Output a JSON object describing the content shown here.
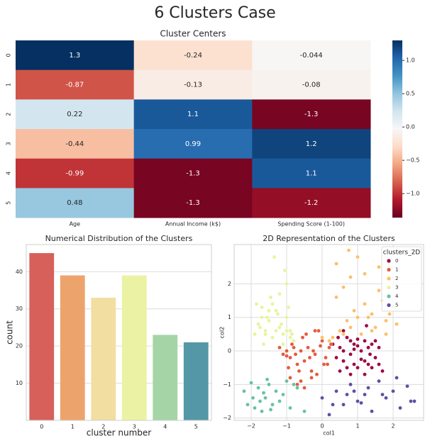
{
  "title": "6 Clusters Case",
  "chart_data": [
    {
      "type": "heatmap",
      "title": "Cluster Centers",
      "rows": [
        "0",
        "1",
        "2",
        "3",
        "4",
        "5"
      ],
      "columns": [
        "Age",
        "Annual Income (k$)",
        "Spending Score (1-100)"
      ],
      "values": [
        [
          1.3,
          -0.24,
          -0.044
        ],
        [
          -0.87,
          -0.13,
          -0.08
        ],
        [
          0.22,
          1.1,
          -1.3
        ],
        [
          -0.44,
          0.99,
          1.2
        ],
        [
          -0.99,
          -1.3,
          1.1
        ],
        [
          0.48,
          -1.3,
          -1.2
        ]
      ],
      "colormap": "RdBu",
      "zlim": [
        -1.36,
        1.3
      ],
      "zticks": [
        {
          "value": 1,
          "label": "1.0"
        },
        0.5,
        {
          "value": 0,
          "label": "0.0"
        },
        {
          "value": -0.5,
          "label": "−0.5"
        },
        {
          "value": -1,
          "label": "−1.0"
        }
      ]
    },
    {
      "type": "bar",
      "title": "Numerical Distribution of the Clusters",
      "x_label": "cluster number",
      "y_label": "count",
      "categories": [
        "0",
        "1",
        "2",
        "3",
        "4",
        "5"
      ],
      "values": [
        45,
        39,
        33,
        39,
        23,
        21
      ],
      "colors": [
        "#d7605b",
        "#eca46c",
        "#f2dea1",
        "#ebf2a3",
        "#a5d5a6",
        "#5497a6"
      ],
      "ylim": [
        0,
        47.3
      ],
      "yticks": [
        10,
        20,
        30,
        40
      ],
      "grid": true
    },
    {
      "type": "scatter",
      "title": "2D Representation of the Clusters",
      "x_label": "col1",
      "y_label": "col2",
      "legend_title": "clusters_2D",
      "legend": "upper right",
      "grid": true,
      "xlim": [
        -2.48,
        2.86
      ],
      "ylim": [
        -2.07,
        3.17
      ],
      "xticks": [
        {
          "value": -2,
          "label": "−2"
        },
        {
          "value": -1,
          "label": "−1"
        },
        0,
        1,
        2
      ],
      "yticks": [
        {
          "value": -2,
          "label": "−2"
        },
        {
          "value": -1,
          "label": "−1"
        },
        0,
        1,
        2
      ],
      "series": [
        {
          "name": "0",
          "color": "#9e0142",
          "x": [
            0.5,
            0.6,
            0.7,
            0.8,
            0.9,
            1.0,
            1.1,
            1.2,
            1.3,
            1.4,
            1.5,
            1.6,
            1.7,
            0.4,
            0.6,
            0.8,
            1.0,
            1.2,
            1.4,
            0.3,
            0.7,
            0.9,
            1.1,
            1.3,
            1.5,
            0.5,
            0.8,
            1.0,
            1.25,
            0.6,
            1.6,
            1.2,
            0.9,
            0.45,
            1.35
          ],
          "y": [
            0.1,
            -0.3,
            0.4,
            -0.1,
            0.2,
            -0.5,
            0.0,
            0.3,
            -0.4,
            0.2,
            -0.2,
            0.1,
            -0.6,
            -0.2,
            0.6,
            -0.7,
            0.35,
            -0.3,
            -0.5,
            0.2,
            -0.5,
            0.05,
            -0.25,
            0.1,
            0.3,
            -0.6,
            0.3,
            0.15,
            0.75,
            0.0,
            -0.4,
            -0.7,
            -0.4,
            0.4,
            -0.1
          ]
        },
        {
          "name": "1",
          "color": "#e55a3c",
          "x": [
            -1.0,
            -0.9,
            -0.8,
            -0.7,
            -0.6,
            -0.5,
            -0.4,
            -0.3,
            -0.2,
            -0.1,
            0.0,
            0.1,
            0.2,
            -1.1,
            -0.95,
            -0.75,
            -0.55,
            -0.35,
            -0.15,
            0.05,
            -0.85,
            -0.65,
            -0.45,
            -0.25,
            -1.2,
            -0.6,
            -0.3,
            0.25,
            -0.7,
            -0.5,
            -0.2,
            -0.9,
            -0.05,
            -1.0,
            0.15
          ],
          "y": [
            0.0,
            -0.2,
            0.1,
            -0.4,
            0.0,
            -0.3,
            0.1,
            -0.6,
            -0.1,
            0.6,
            0.3,
            -0.2,
            0.1,
            -0.1,
            -0.5,
            -0.1,
            0.4,
            -0.2,
            -0.7,
            -0.4,
            0.2,
            -0.6,
            0.5,
            0.0,
            0.1,
            -0.9,
            -0.8,
            0.2,
            -1.0,
            -1.1,
            0.6,
            -0.8,
            0.15,
            -0.15,
            -0.4
          ]
        },
        {
          "name": "2",
          "color": "#fbc06b",
          "x": [
            0.3,
            0.5,
            0.7,
            0.9,
            1.1,
            1.3,
            1.5,
            1.7,
            1.9,
            2.1,
            0.2,
            0.4,
            0.6,
            0.8,
            1.0,
            1.2,
            1.4,
            1.6,
            1.8,
            2.0,
            0.0,
            0.6,
            1.0,
            1.4,
            1.8,
            0.4,
            1.2,
            0.75,
            1.6,
            0.8
          ],
          "y": [
            0.4,
            0.6,
            0.9,
            1.2,
            0.5,
            1.0,
            0.7,
            1.5,
            1.1,
            0.8,
            0.3,
            1.6,
            0.5,
            2.2,
            1.0,
            1.4,
            0.6,
            2.5,
            0.9,
            1.3,
            0.4,
            1.9,
            2.8,
            1.1,
            0.5,
            2.6,
            2.3,
            3.0,
            1.8,
            0.7
          ]
        },
        {
          "name": "3",
          "color": "#e7f49c",
          "x": [
            -1.9,
            -1.8,
            -1.7,
            -1.6,
            -1.5,
            -1.4,
            -1.3,
            -1.2,
            -1.1,
            -1.0,
            -0.9,
            -0.8,
            -1.85,
            -1.65,
            -1.45,
            -1.25,
            -1.05,
            -0.85,
            -1.75,
            -1.55,
            -1.35,
            -1.15,
            -0.95,
            -1.6,
            -1.4,
            -1.2,
            -1.0,
            -1.3,
            -1.1,
            -0.9,
            -1.5,
            -1.7,
            -1.0
          ],
          "y": [
            0.5,
            0.8,
            1.3,
            0.6,
            0.9,
            0.4,
            1.2,
            0.7,
            0.5,
            1.0,
            0.6,
            0.3,
            1.4,
            0.2,
            1.6,
            1.1,
            2.4,
            0.5,
            0.7,
            1.0,
            2.8,
            0.8,
            1.3,
            0.5,
            1.4,
            1.7,
            2.0,
            0.6,
            0.2,
            0.4,
            1.2,
            1.0,
            0.6
          ]
        },
        {
          "name": "4",
          "color": "#66c2a5",
          "x": [
            -2.2,
            -2.1,
            -2.0,
            -1.9,
            -1.8,
            -1.7,
            -1.6,
            -1.5,
            -1.4,
            -1.3,
            -1.2,
            -1.1,
            -1.0,
            -0.9,
            -0.7,
            -0.5,
            -1.95,
            -1.65,
            -1.45,
            -1.75,
            -1.55,
            -0.8
          ],
          "y": [
            -1.2,
            -1.6,
            -0.95,
            -1.7,
            -1.1,
            -1.8,
            -1.4,
            -1.0,
            -1.6,
            -1.2,
            -1.5,
            -1.3,
            -0.9,
            -1.7,
            -1.1,
            -1.8,
            -1.4,
            -1.25,
            -1.75,
            -1.5,
            -0.85,
            -1.0
          ]
        },
        {
          "name": "5",
          "color": "#5e4fa2",
          "x": [
            0.0,
            0.2,
            0.4,
            0.6,
            0.8,
            1.0,
            1.2,
            1.4,
            1.6,
            1.8,
            2.0,
            2.2,
            2.4,
            2.5,
            2.6,
            0.3,
            0.9,
            1.3,
            1.7,
            2.1,
            0.7,
            1.1
          ],
          "y": [
            -1.4,
            -1.9,
            -1.2,
            -1.6,
            -1.0,
            -1.5,
            -1.3,
            -1.8,
            -0.9,
            -1.4,
            -1.2,
            -1.7,
            -1.05,
            -1.5,
            -1.5,
            -1.6,
            -1.2,
            -1.1,
            -1.3,
            -0.8,
            -1.3,
            -1.55
          ]
        }
      ]
    }
  ]
}
